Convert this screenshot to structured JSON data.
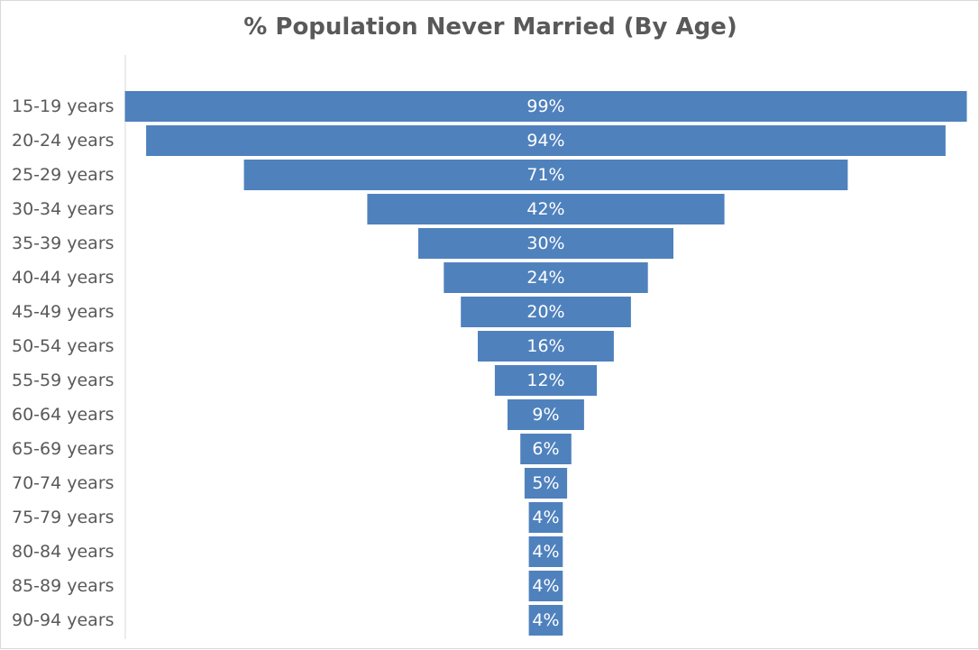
{
  "chart_data": {
    "type": "bar",
    "orientation": "horizontal-funnel",
    "title": "% Population Never Married (By Age)",
    "xlabel": "",
    "ylabel": "",
    "categories": [
      "15-19 years",
      "20-24 years",
      "25-29 years",
      "30-34 years",
      "35-39 years",
      "40-44 years",
      "45-49 years",
      "50-54 years",
      "55-59 years",
      "60-64 years",
      "65-69 years",
      "70-74 years",
      "75-79 years",
      "80-84 years",
      "85-89 years",
      "90-94 years"
    ],
    "values": [
      99,
      94,
      71,
      42,
      30,
      24,
      20,
      16,
      12,
      9,
      6,
      5,
      4,
      4,
      4,
      4
    ],
    "data_labels": [
      "99%",
      "94%",
      "71%",
      "42%",
      "30%",
      "24%",
      "20%",
      "16%",
      "12%",
      "9%",
      "6%",
      "5%",
      "4%",
      "4%",
      "4%",
      "4%"
    ],
    "xlim": [
      0,
      100
    ],
    "grid": false,
    "legend": "none",
    "colors": {
      "bar": "#4f81bd",
      "label_text": "#ffffff",
      "axis_text": "#595959"
    }
  }
}
